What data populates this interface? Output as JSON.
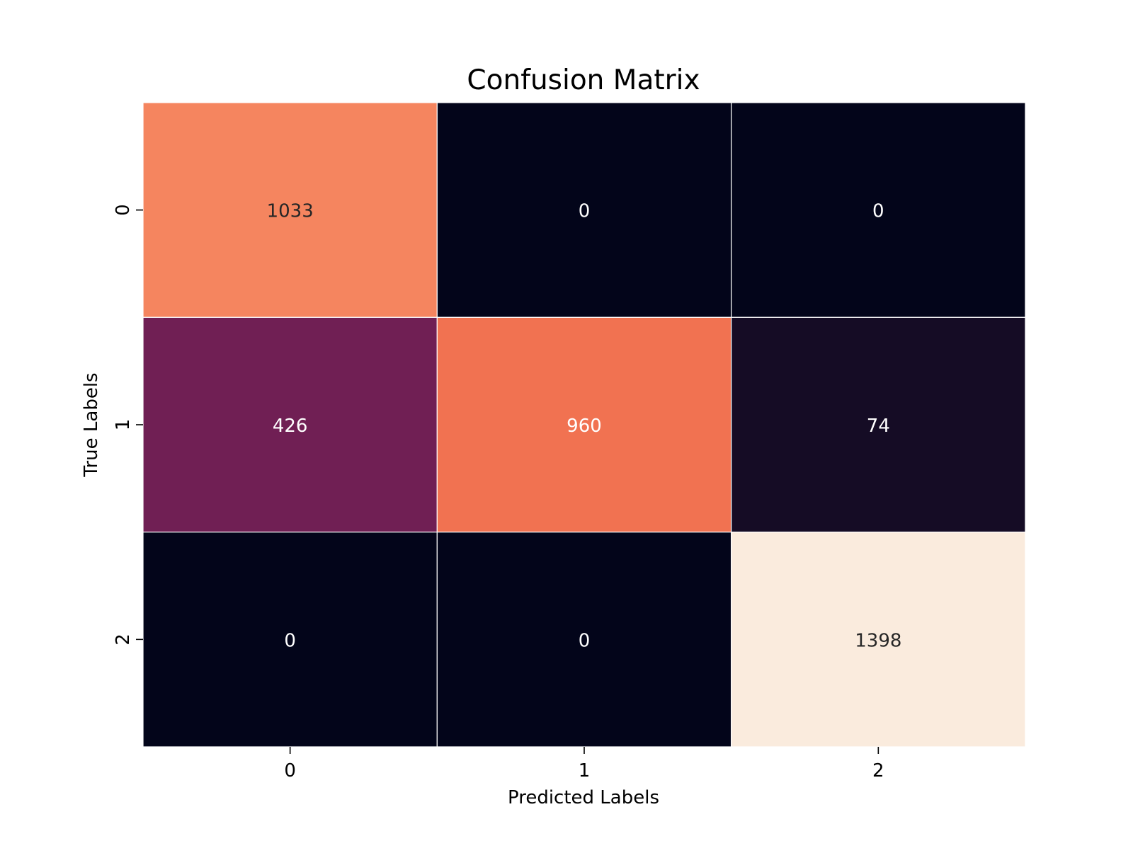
{
  "chart_data": {
    "type": "heatmap",
    "title": "Confusion Matrix",
    "xlabel": "Predicted Labels",
    "ylabel": "True Labels",
    "x_categories": [
      "0",
      "1",
      "2"
    ],
    "y_categories": [
      "0",
      "1",
      "2"
    ],
    "values": [
      [
        1033,
        0,
        0
      ],
      [
        426,
        960,
        74
      ],
      [
        0,
        0,
        1398
      ]
    ],
    "colormap": "rocket",
    "colorbar": false,
    "annotations": true,
    "cell_separator_color": "#ffffff"
  }
}
